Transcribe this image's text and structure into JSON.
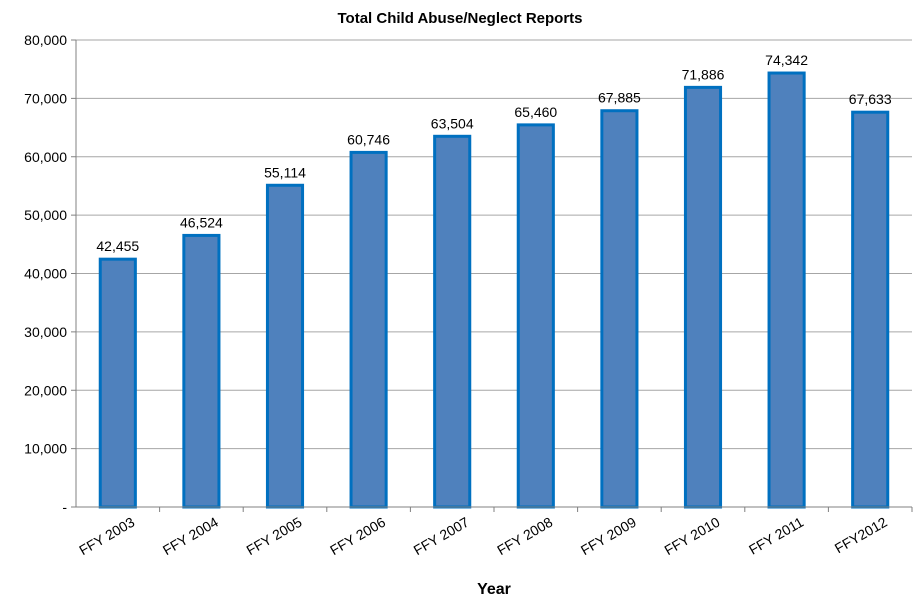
{
  "chart_data": {
    "type": "bar",
    "title": "Total Child Abuse/Neglect Reports",
    "xlabel": "Year",
    "ylabel": "",
    "categories": [
      "FFY 2003",
      "FFY 2004",
      "FFY 2005",
      "FFY 2006",
      "FFY 2007",
      "FFY 2008",
      "FFY 2009",
      "FFY 2010",
      "FFY 2011",
      "FFY2012"
    ],
    "values": [
      42455,
      46524,
      55114,
      60746,
      63504,
      65460,
      67885,
      71886,
      74342,
      67633
    ],
    "data_labels": [
      "42,455",
      "46,524",
      "55,114",
      "60,746",
      "63,504",
      "65,460",
      "67,885",
      "71,886",
      "74,342",
      "67,633"
    ],
    "ylim": [
      0,
      80000
    ],
    "yticks": [
      0,
      10000,
      20000,
      30000,
      40000,
      50000,
      60000,
      70000,
      80000
    ],
    "ytick_labels": [
      "-",
      "10,000",
      "20,000",
      "30,000",
      "40,000",
      "50,000",
      "60,000",
      "70,000",
      "80,000"
    ],
    "grid": true,
    "legend": "none",
    "bar_fill": "#4f81bd",
    "bar_stroke": "#0070c0"
  }
}
